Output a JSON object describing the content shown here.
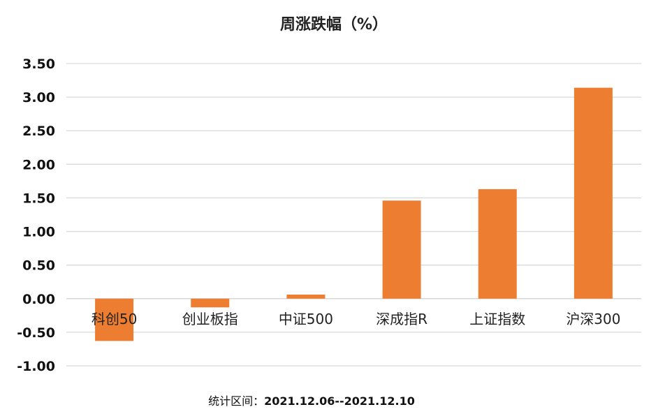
{
  "chart_data": {
    "type": "bar",
    "title": "周涨跌幅（%）",
    "categories": [
      "科创50",
      "创业板指",
      "中证500",
      "深成指R",
      "上证指数",
      "沪深300"
    ],
    "series": [
      {
        "values": [
          -0.63,
          -0.13,
          0.06,
          1.46,
          1.63,
          3.14
        ]
      }
    ],
    "ylim": [
      -1.0,
      3.5
    ],
    "yticks": [
      "3.50",
      "3.00",
      "2.50",
      "2.00",
      "1.50",
      "1.00",
      "0.50",
      "0.00",
      "-0.50",
      "-1.00"
    ],
    "ytick_values": [
      3.5,
      3.0,
      2.5,
      2.0,
      1.5,
      1.0,
      0.5,
      0.0,
      -0.5,
      -1.0
    ],
    "grid": true,
    "bar_color": "#ED7D31",
    "xlabel": "",
    "ylabel": ""
  },
  "footer": {
    "label": "统计区间：",
    "value": "2021.12.06--2021.12.10"
  }
}
